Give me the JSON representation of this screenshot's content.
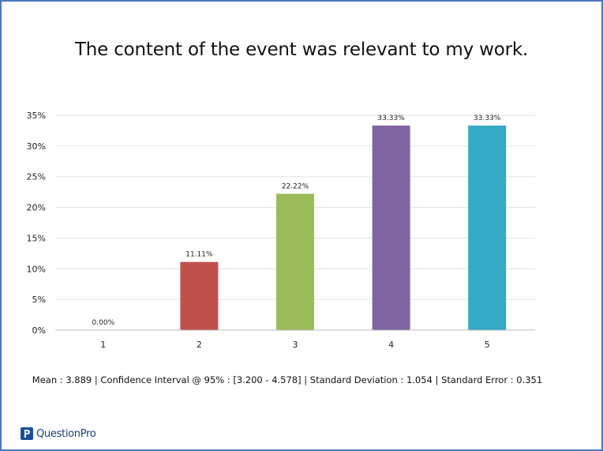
{
  "chart_data": {
    "type": "bar",
    "title": "The content of the event was relevant to my work.",
    "xlabel": "",
    "ylabel": "",
    "categories": [
      "1",
      "2",
      "3",
      "4",
      "5"
    ],
    "values": [
      0.0,
      11.11,
      22.22,
      33.33,
      33.33
    ],
    "data_labels": [
      "0.00%",
      "11.11%",
      "22.22%",
      "33.33%",
      "33.33%"
    ],
    "colors": [
      "#4f81bd",
      "#c0504d",
      "#9bbb59",
      "#8064a2",
      "#35aac4"
    ],
    "ylim": [
      0,
      35
    ],
    "y_ticks": [
      0,
      5,
      10,
      15,
      20,
      25,
      30,
      35
    ],
    "y_tick_labels": [
      "0%",
      "5%",
      "10%",
      "15%",
      "20%",
      "25%",
      "30%",
      "35%"
    ],
    "grid": true,
    "legend": "none"
  },
  "stats_line": "Mean : 3.889  | Confidence Interval @ 95% : [3.200 - 4.578]  |  Standard Deviation : 1.054  |  Standard Error : 0.351",
  "brand": {
    "name": "QuestionPro",
    "icon": "questionpro-logo-icon",
    "color": "#1b4f9c"
  }
}
